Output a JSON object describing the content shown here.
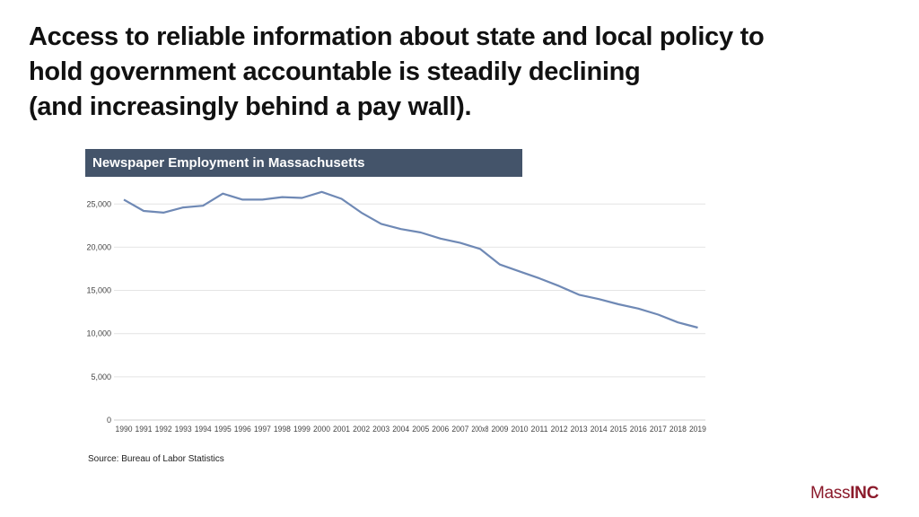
{
  "headline": {
    "line1": "Access to reliable information about state and local policy to",
    "line2": "hold government accountable is steadily declining",
    "line3": "(and increasingly behind a pay wall)."
  },
  "source": "Source: Bureau of Labor Statistics",
  "logo": {
    "part1": "Mass",
    "part2": "INC",
    "color": "#8b1a2b"
  },
  "chart_data": {
    "type": "line",
    "title": "Newspaper Employment in Massachusetts",
    "xlabel": "",
    "ylabel": "",
    "ylim": [
      0,
      27000
    ],
    "yticks": [
      0,
      5000,
      10000,
      15000,
      20000,
      25000
    ],
    "ytick_labels": [
      "0",
      "5,000",
      "10,000",
      "15,000",
      "20,000",
      "25,000"
    ],
    "grid": true,
    "line_color": "#6f89b5",
    "categories": [
      "1990",
      "1991",
      "1992",
      "1993",
      "1994",
      "1995",
      "1996",
      "1997",
      "1998",
      "1999",
      "2000",
      "2001",
      "2002",
      "2003",
      "2004",
      "2005",
      "2006",
      "2007",
      "200x8",
      "2009",
      "2010",
      "2011",
      "2012",
      "2013",
      "2014",
      "2015",
      "2016",
      "2017",
      "2018",
      "2019"
    ],
    "values": [
      25500,
      24200,
      24000,
      24600,
      24800,
      26200,
      25500,
      25500,
      25800,
      25700,
      26400,
      25600,
      24000,
      22700,
      22100,
      21700,
      21000,
      20500,
      19800,
      18000,
      17200,
      16400,
      15500,
      14500,
      14000,
      13400,
      12900,
      12200,
      11300,
      10700
    ]
  }
}
